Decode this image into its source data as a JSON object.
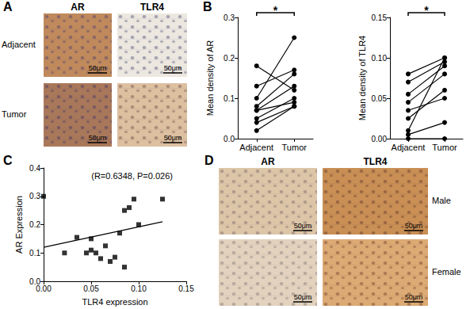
{
  "panel_labels": [
    "A",
    "B",
    "C",
    "D"
  ],
  "image_panels": [
    {
      "columns": [
        "AR",
        "TLR4"
      ],
      "rows": [
        "Adjacent",
        "Tumor"
      ],
      "scale_bar": "50μm"
    },
    {
      "columns": [
        "AR",
        "TLR4"
      ],
      "rows": [
        "Male",
        "Female"
      ],
      "scale_bar": "50μm"
    }
  ],
  "chart_data": [
    {
      "type": "line",
      "ylabel": "Mean density of AR",
      "categories": [
        "Adjacent",
        "Tumor"
      ],
      "series": [
        {
          "values": [
            0.18,
            0.12
          ]
        },
        {
          "values": [
            0.13,
            0.17
          ]
        },
        {
          "values": [
            0.1,
            0.25
          ]
        },
        {
          "values": [
            0.08,
            0.16
          ]
        },
        {
          "values": [
            0.07,
            0.09
          ]
        },
        {
          "values": [
            0.07,
            0.13
          ]
        },
        {
          "values": [
            0.05,
            0.1
          ]
        },
        {
          "values": [
            0.04,
            0.08
          ]
        },
        {
          "values": [
            0.02,
            0.08
          ]
        }
      ],
      "color": "#000000",
      "marker": "circle",
      "ylim": [
        0,
        0.3
      ],
      "yticks": [
        {
          "value": 0,
          "label": "0.0"
        },
        0.1,
        0.2,
        0.3
      ],
      "annotations": [
        "*"
      ],
      "grid": false
    },
    {
      "type": "line",
      "ylabel": "Mean density of TLR4",
      "categories": [
        "Adjacent",
        "Tumor"
      ],
      "series": [
        {
          "values": [
            0.08,
            0.1
          ]
        },
        {
          "values": [
            0.07,
            0.095
          ]
        },
        {
          "values": [
            0.055,
            0.09
          ]
        },
        {
          "values": [
            0.045,
            0.08
          ]
        },
        {
          "values": [
            0.035,
            0.05
          ]
        },
        {
          "values": [
            0.025,
            0.06
          ]
        },
        {
          "values": [
            0.01,
            0.1
          ]
        },
        {
          "values": [
            0.005,
            0.02
          ]
        },
        {
          "values": [
            0.0,
            0.0
          ]
        }
      ],
      "color": "#000000",
      "marker": "circle",
      "ylim": [
        0,
        0.15
      ],
      "yticks": [
        {
          "value": 0,
          "label": "0.00"
        },
        0.05,
        {
          "value": 0.1,
          "label": "0.10"
        },
        0.15
      ],
      "annotations": [
        "*"
      ],
      "grid": false
    },
    {
      "type": "scatter",
      "xlabel": "TLR4 expression",
      "ylabel": "AR Expression",
      "x": [
        0.0,
        0.022,
        0.035,
        0.045,
        0.05,
        0.05,
        0.055,
        0.06,
        0.065,
        0.07,
        0.075,
        0.08,
        0.085,
        0.085,
        0.09,
        0.095,
        0.1,
        0.125
      ],
      "values": [
        0.3,
        0.1,
        0.155,
        0.1,
        0.15,
        0.11,
        0.1,
        0.08,
        0.125,
        0.07,
        0.085,
        0.17,
        0.25,
        0.05,
        0.26,
        0.29,
        0.2,
        0.29
      ],
      "fit": {
        "x": [
          0.0,
          0.125
        ],
        "values": [
          0.12,
          0.21
        ]
      },
      "color": "#000000",
      "marker": "square",
      "xlim": [
        0,
        0.15
      ],
      "xticks": [
        {
          "value": 0,
          "label": "0.00"
        },
        0.05,
        {
          "value": 0.1,
          "label": "0.10"
        },
        0.15
      ],
      "ylim": [
        0,
        0.4
      ],
      "yticks": [
        {
          "value": 0,
          "label": "0.0"
        },
        0.1,
        0.2,
        0.3,
        0.4
      ],
      "annotations": [
        "(R=0.6348, P=0.026)"
      ],
      "grid": false
    }
  ]
}
